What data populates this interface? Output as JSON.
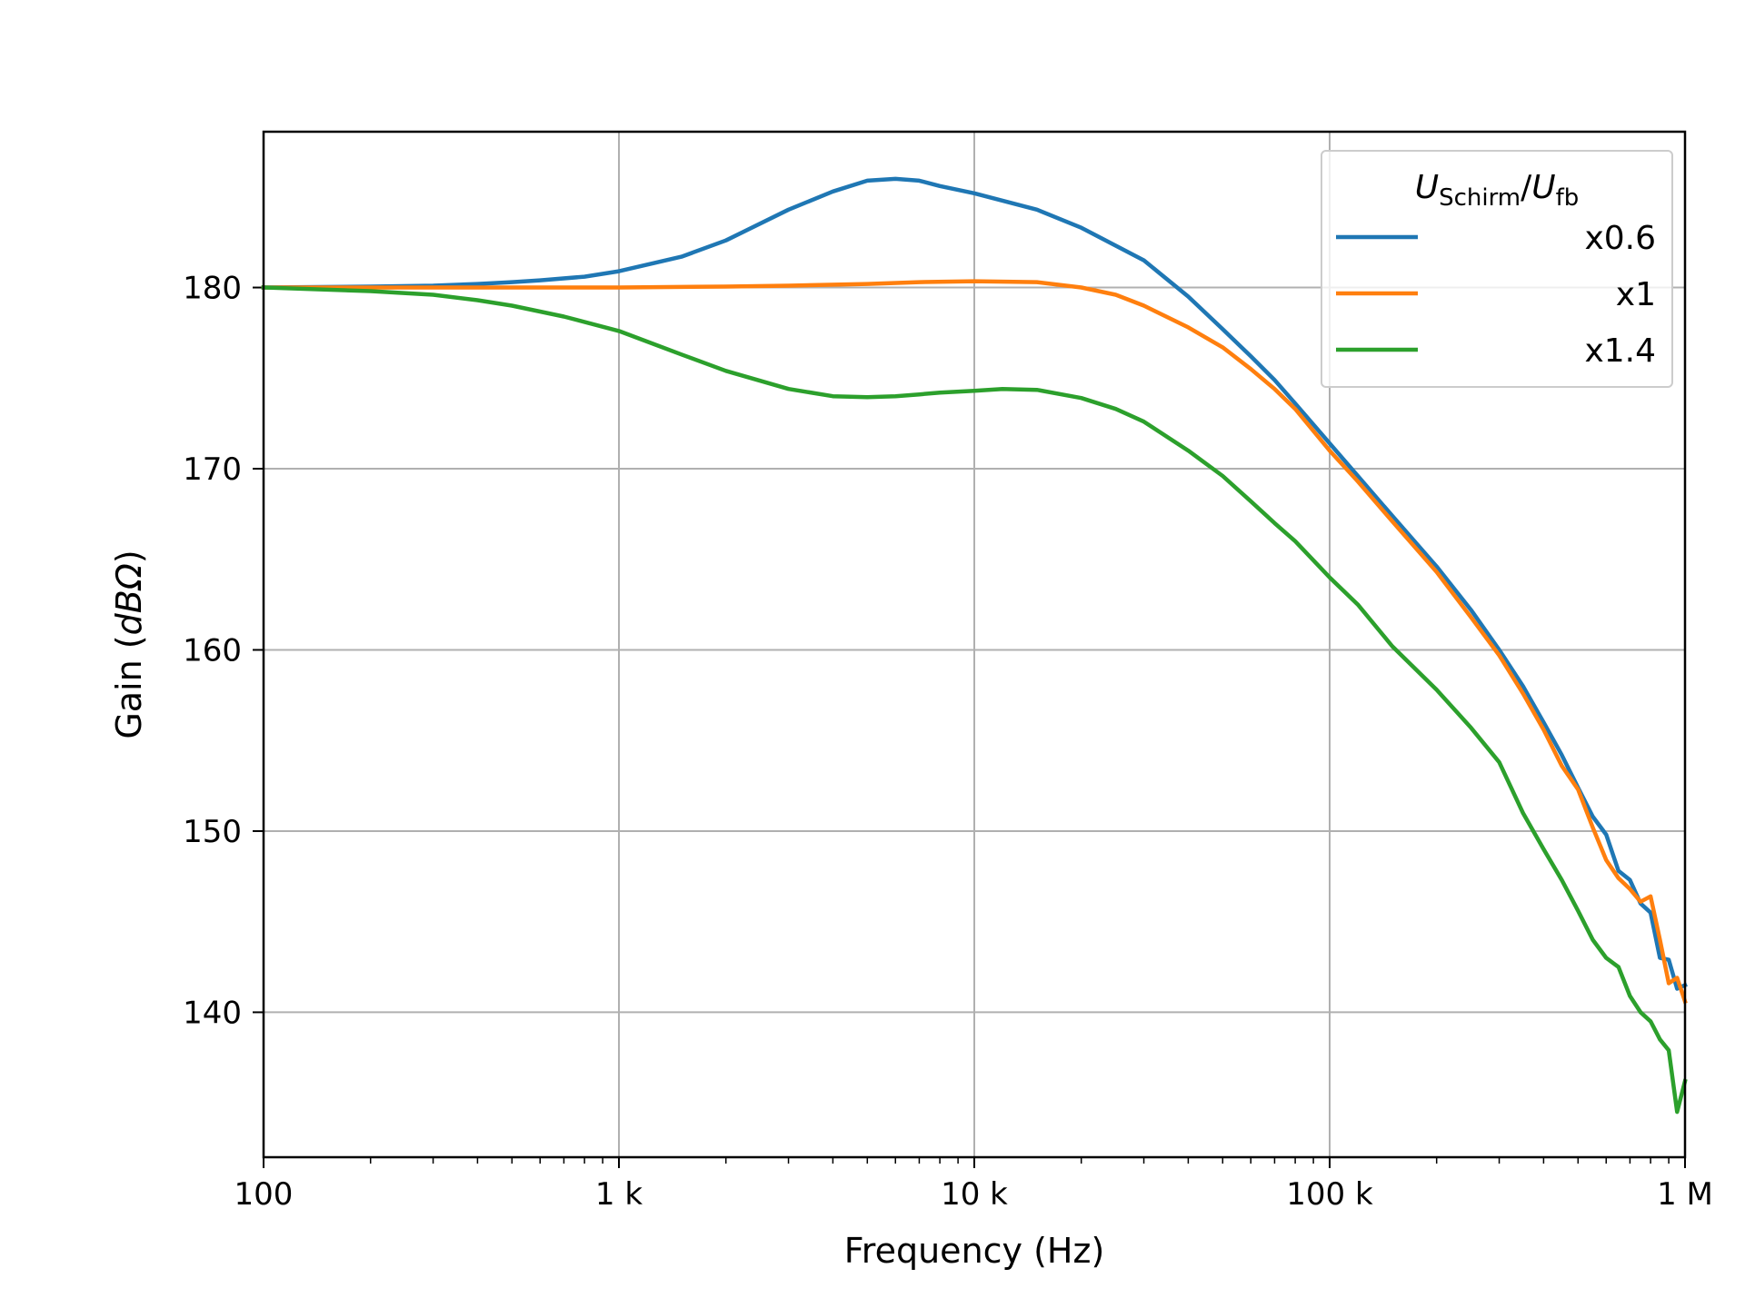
{
  "chart_data": {
    "type": "line",
    "title": "",
    "xlabel": "Frequency (Hz)",
    "ylabel_prefix": "Gain (",
    "ylabel_unit": "dBΩ",
    "ylabel_suffix": ")",
    "x_scale": "log",
    "xlim": [
      100,
      1000000
    ],
    "ylim": [
      132,
      188.6
    ],
    "grid": true,
    "x_ticks": [
      {
        "value": 100,
        "label": "100"
      },
      {
        "value": 1000,
        "label": "1 k"
      },
      {
        "value": 10000,
        "label": "10 k"
      },
      {
        "value": 100000,
        "label": "100 k"
      },
      {
        "value": 1000000,
        "label": "1 M"
      }
    ],
    "y_ticks": [
      {
        "value": 140,
        "label": "140"
      },
      {
        "value": 150,
        "label": "150"
      },
      {
        "value": 160,
        "label": "160"
      },
      {
        "value": 170,
        "label": "170"
      },
      {
        "value": 180,
        "label": "180"
      }
    ],
    "legend": {
      "placement": "top-right",
      "title_main1": "U",
      "title_sub1": "Schirm",
      "title_sep": "/",
      "title_main2": "U",
      "title_sub2": "fb"
    },
    "series": [
      {
        "name": "x0.6",
        "color": "#1f77b4",
        "points": [
          [
            100,
            180.0
          ],
          [
            200,
            180.05
          ],
          [
            300,
            180.1
          ],
          [
            400,
            180.2
          ],
          [
            500,
            180.3
          ],
          [
            600,
            180.4
          ],
          [
            800,
            180.6
          ],
          [
            1000,
            180.9
          ],
          [
            1500,
            181.7
          ],
          [
            2000,
            182.6
          ],
          [
            3000,
            184.3
          ],
          [
            4000,
            185.3
          ],
          [
            5000,
            185.9
          ],
          [
            6000,
            186.0
          ],
          [
            7000,
            185.9
          ],
          [
            8000,
            185.6
          ],
          [
            10000,
            185.2
          ],
          [
            15000,
            184.3
          ],
          [
            20000,
            183.3
          ],
          [
            30000,
            181.5
          ],
          [
            40000,
            179.5
          ],
          [
            50000,
            177.7
          ],
          [
            60000,
            176.2
          ],
          [
            70000,
            174.9
          ],
          [
            80000,
            173.6
          ],
          [
            100000,
            171.4
          ],
          [
            120000,
            169.6
          ],
          [
            150000,
            167.4
          ],
          [
            200000,
            164.6
          ],
          [
            250000,
            162.2
          ],
          [
            300000,
            160.0
          ],
          [
            350000,
            158.0
          ],
          [
            400000,
            156.0
          ],
          [
            450000,
            154.2
          ],
          [
            500000,
            152.4
          ],
          [
            550000,
            150.8
          ],
          [
            600000,
            149.8
          ],
          [
            650000,
            147.8
          ],
          [
            700000,
            147.3
          ],
          [
            750000,
            146.0
          ],
          [
            800000,
            145.5
          ],
          [
            850000,
            143.0
          ],
          [
            900000,
            142.9
          ],
          [
            950000,
            141.3
          ],
          [
            1000000,
            141.5
          ]
        ]
      },
      {
        "name": "x1",
        "color": "#ff7f0e",
        "points": [
          [
            100,
            180.0
          ],
          [
            200,
            180.0
          ],
          [
            500,
            180.0
          ],
          [
            1000,
            180.0
          ],
          [
            2000,
            180.05
          ],
          [
            3000,
            180.1
          ],
          [
            5000,
            180.2
          ],
          [
            7000,
            180.3
          ],
          [
            10000,
            180.35
          ],
          [
            15000,
            180.3
          ],
          [
            20000,
            180.0
          ],
          [
            25000,
            179.6
          ],
          [
            30000,
            179.0
          ],
          [
            40000,
            177.8
          ],
          [
            50000,
            176.7
          ],
          [
            60000,
            175.5
          ],
          [
            70000,
            174.4
          ],
          [
            80000,
            173.3
          ],
          [
            100000,
            171.0
          ],
          [
            120000,
            169.3
          ],
          [
            150000,
            167.1
          ],
          [
            200000,
            164.3
          ],
          [
            250000,
            161.8
          ],
          [
            300000,
            159.7
          ],
          [
            350000,
            157.6
          ],
          [
            400000,
            155.6
          ],
          [
            450000,
            153.6
          ],
          [
            500000,
            152.3
          ],
          [
            550000,
            150.2
          ],
          [
            600000,
            148.4
          ],
          [
            650000,
            147.4
          ],
          [
            700000,
            146.8
          ],
          [
            750000,
            146.1
          ],
          [
            800000,
            146.4
          ],
          [
            850000,
            144.0
          ],
          [
            900000,
            141.6
          ],
          [
            950000,
            141.9
          ],
          [
            1000000,
            140.6
          ]
        ]
      },
      {
        "name": "x1.4",
        "color": "#2ca02c",
        "points": [
          [
            100,
            180.0
          ],
          [
            200,
            179.8
          ],
          [
            300,
            179.6
          ],
          [
            400,
            179.3
          ],
          [
            500,
            179.0
          ],
          [
            700,
            178.4
          ],
          [
            1000,
            177.6
          ],
          [
            1500,
            176.3
          ],
          [
            2000,
            175.4
          ],
          [
            3000,
            174.4
          ],
          [
            4000,
            174.0
          ],
          [
            5000,
            173.95
          ],
          [
            6000,
            174.0
          ],
          [
            7000,
            174.1
          ],
          [
            8000,
            174.2
          ],
          [
            10000,
            174.3
          ],
          [
            12000,
            174.4
          ],
          [
            15000,
            174.35
          ],
          [
            20000,
            173.9
          ],
          [
            25000,
            173.3
          ],
          [
            30000,
            172.6
          ],
          [
            40000,
            171.0
          ],
          [
            50000,
            169.6
          ],
          [
            60000,
            168.2
          ],
          [
            70000,
            167.0
          ],
          [
            80000,
            166.0
          ],
          [
            100000,
            164.0
          ],
          [
            120000,
            162.5
          ],
          [
            150000,
            160.2
          ],
          [
            200000,
            157.8
          ],
          [
            250000,
            155.7
          ],
          [
            300000,
            153.8
          ],
          [
            350000,
            151.0
          ],
          [
            400000,
            149.0
          ],
          [
            450000,
            147.3
          ],
          [
            500000,
            145.6
          ],
          [
            550000,
            144.0
          ],
          [
            600000,
            143.0
          ],
          [
            650000,
            142.5
          ],
          [
            700000,
            140.9
          ],
          [
            750000,
            140.0
          ],
          [
            800000,
            139.5
          ],
          [
            850000,
            138.5
          ],
          [
            900000,
            137.9
          ],
          [
            950000,
            134.5
          ],
          [
            1000000,
            136.2
          ]
        ]
      }
    ]
  }
}
